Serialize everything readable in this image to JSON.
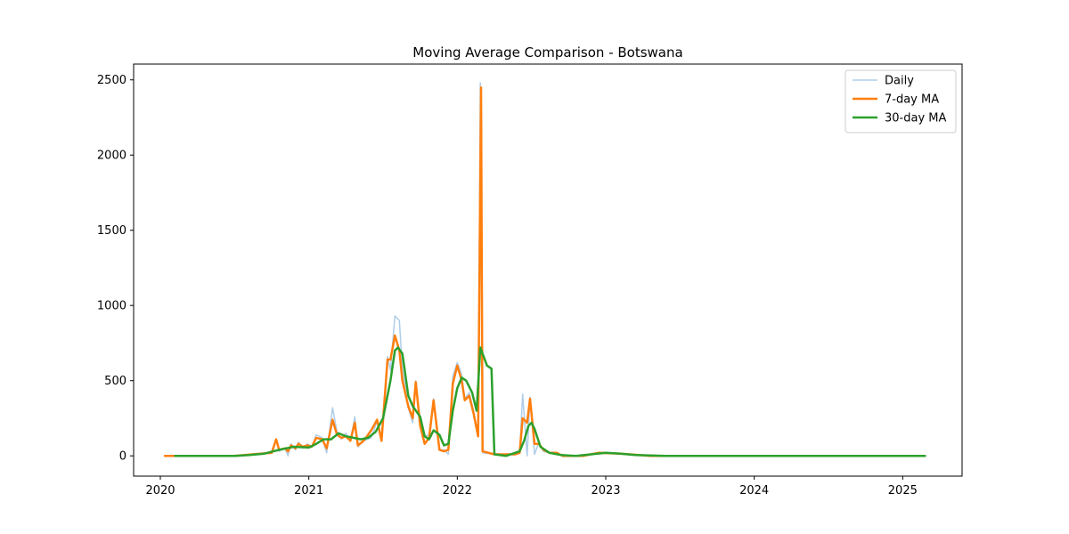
{
  "chart_data": {
    "type": "line",
    "title": "Moving Average Comparison - Botswana",
    "xlabel": "",
    "ylabel": "",
    "xlim": [
      2019.82,
      2025.4
    ],
    "ylim": [
      -135,
      2605
    ],
    "x_ticks": [
      2020,
      2021,
      2022,
      2023,
      2024,
      2025
    ],
    "x_tick_labels": [
      "2020",
      "2021",
      "2022",
      "2023",
      "2024",
      "2025"
    ],
    "y_ticks": [
      0,
      500,
      1000,
      1500,
      2000,
      2500
    ],
    "y_tick_labels": [
      "0",
      "500",
      "1000",
      "1500",
      "2000",
      "2500"
    ],
    "grid": false,
    "legend_position": "top-right",
    "series": [
      {
        "name": "Daily",
        "color": "#aecde8",
        "width": 1.5,
        "points": [
          [
            2020.03,
            0
          ],
          [
            2020.5,
            0
          ],
          [
            2020.62,
            10
          ],
          [
            2020.75,
            20
          ],
          [
            2020.78,
            110
          ],
          [
            2020.8,
            30
          ],
          [
            2020.84,
            50
          ],
          [
            2020.86,
            0
          ],
          [
            2020.88,
            80
          ],
          [
            2020.91,
            40
          ],
          [
            2020.93,
            90
          ],
          [
            2020.96,
            50
          ],
          [
            2020.99,
            80
          ],
          [
            2021.02,
            60
          ],
          [
            2021.05,
            140
          ],
          [
            2021.09,
            120
          ],
          [
            2021.12,
            20
          ],
          [
            2021.16,
            320
          ],
          [
            2021.19,
            160
          ],
          [
            2021.22,
            110
          ],
          [
            2021.25,
            150
          ],
          [
            2021.28,
            100
          ],
          [
            2021.31,
            260
          ],
          [
            2021.33,
            60
          ],
          [
            2021.37,
            100
          ],
          [
            2021.42,
            120
          ],
          [
            2021.46,
            230
          ],
          [
            2021.49,
            110
          ],
          [
            2021.53,
            660
          ],
          [
            2021.55,
            570
          ],
          [
            2021.58,
            930
          ],
          [
            2021.61,
            900
          ],
          [
            2021.63,
            580
          ],
          [
            2021.67,
            320
          ],
          [
            2021.7,
            220
          ],
          [
            2021.72,
            500
          ],
          [
            2021.75,
            230
          ],
          [
            2021.78,
            130
          ],
          [
            2021.81,
            140
          ],
          [
            2021.84,
            380
          ],
          [
            2021.88,
            40
          ],
          [
            2021.91,
            40
          ],
          [
            2021.94,
            10
          ],
          [
            2021.97,
            530
          ],
          [
            2022.0,
            620
          ],
          [
            2022.03,
            540
          ],
          [
            2022.05,
            380
          ],
          [
            2022.08,
            420
          ],
          [
            2022.11,
            300
          ],
          [
            2022.14,
            130
          ],
          [
            2022.155,
            2480
          ],
          [
            2022.17,
            20
          ],
          [
            2022.25,
            10
          ],
          [
            2022.33,
            10
          ],
          [
            2022.39,
            10
          ],
          [
            2022.42,
            20
          ],
          [
            2022.44,
            410
          ],
          [
            2022.47,
            0
          ],
          [
            2022.49,
            390
          ],
          [
            2022.52,
            10
          ],
          [
            2022.55,
            90
          ],
          [
            2022.58,
            30
          ],
          [
            2022.62,
            20
          ],
          [
            2022.67,
            10
          ],
          [
            2022.71,
            0
          ],
          [
            2022.85,
            0
          ],
          [
            2022.95,
            20
          ],
          [
            2023.1,
            15
          ],
          [
            2023.3,
            0
          ],
          [
            2025.15,
            0
          ]
        ]
      },
      {
        "name": "7-day MA",
        "color": "#ff7f0e",
        "width": 2.5,
        "points": [
          [
            2020.03,
            0
          ],
          [
            2020.5,
            0
          ],
          [
            2020.62,
            10
          ],
          [
            2020.75,
            20
          ],
          [
            2020.78,
            110
          ],
          [
            2020.8,
            40
          ],
          [
            2020.84,
            50
          ],
          [
            2020.86,
            30
          ],
          [
            2020.88,
            70
          ],
          [
            2020.91,
            50
          ],
          [
            2020.93,
            80
          ],
          [
            2020.96,
            60
          ],
          [
            2020.99,
            70
          ],
          [
            2021.02,
            60
          ],
          [
            2021.05,
            120
          ],
          [
            2021.09,
            110
          ],
          [
            2021.12,
            50
          ],
          [
            2021.16,
            240
          ],
          [
            2021.19,
            140
          ],
          [
            2021.22,
            120
          ],
          [
            2021.25,
            130
          ],
          [
            2021.28,
            100
          ],
          [
            2021.31,
            220
          ],
          [
            2021.33,
            70
          ],
          [
            2021.37,
            100
          ],
          [
            2021.42,
            170
          ],
          [
            2021.46,
            240
          ],
          [
            2021.49,
            100
          ],
          [
            2021.53,
            640
          ],
          [
            2021.55,
            640
          ],
          [
            2021.58,
            800
          ],
          [
            2021.61,
            700
          ],
          [
            2021.63,
            500
          ],
          [
            2021.67,
            330
          ],
          [
            2021.7,
            250
          ],
          [
            2021.72,
            490
          ],
          [
            2021.75,
            200
          ],
          [
            2021.78,
            80
          ],
          [
            2021.81,
            120
          ],
          [
            2021.84,
            370
          ],
          [
            2021.88,
            40
          ],
          [
            2021.91,
            30
          ],
          [
            2021.94,
            40
          ],
          [
            2021.97,
            480
          ],
          [
            2022.0,
            600
          ],
          [
            2022.03,
            500
          ],
          [
            2022.05,
            370
          ],
          [
            2022.08,
            400
          ],
          [
            2022.11,
            280
          ],
          [
            2022.14,
            130
          ],
          [
            2022.16,
            2450
          ],
          [
            2022.17,
            30
          ],
          [
            2022.25,
            10
          ],
          [
            2022.33,
            10
          ],
          [
            2022.39,
            10
          ],
          [
            2022.42,
            20
          ],
          [
            2022.44,
            250
          ],
          [
            2022.47,
            220
          ],
          [
            2022.49,
            380
          ],
          [
            2022.52,
            80
          ],
          [
            2022.55,
            80
          ],
          [
            2022.58,
            40
          ],
          [
            2022.62,
            20
          ],
          [
            2022.67,
            20
          ],
          [
            2022.71,
            0
          ],
          [
            2022.85,
            0
          ],
          [
            2022.95,
            20
          ],
          [
            2023.1,
            15
          ],
          [
            2023.3,
            0
          ],
          [
            2025.15,
            0
          ]
        ]
      },
      {
        "name": "30-day MA",
        "color": "#2ca02c",
        "width": 2.5,
        "points": [
          [
            2020.1,
            0
          ],
          [
            2020.5,
            0
          ],
          [
            2020.6,
            5
          ],
          [
            2020.7,
            15
          ],
          [
            2020.8,
            40
          ],
          [
            2020.9,
            60
          ],
          [
            2021.0,
            55
          ],
          [
            2021.05,
            80
          ],
          [
            2021.1,
            110
          ],
          [
            2021.15,
            110
          ],
          [
            2021.2,
            150
          ],
          [
            2021.25,
            130
          ],
          [
            2021.3,
            120
          ],
          [
            2021.35,
            110
          ],
          [
            2021.4,
            120
          ],
          [
            2021.45,
            160
          ],
          [
            2021.5,
            250
          ],
          [
            2021.55,
            500
          ],
          [
            2021.58,
            700
          ],
          [
            2021.6,
            720
          ],
          [
            2021.63,
            680
          ],
          [
            2021.67,
            400
          ],
          [
            2021.7,
            330
          ],
          [
            2021.75,
            260
          ],
          [
            2021.78,
            130
          ],
          [
            2021.81,
            110
          ],
          [
            2021.84,
            170
          ],
          [
            2021.88,
            140
          ],
          [
            2021.91,
            70
          ],
          [
            2021.94,
            80
          ],
          [
            2021.97,
            300
          ],
          [
            2022.0,
            450
          ],
          [
            2022.03,
            520
          ],
          [
            2022.06,
            500
          ],
          [
            2022.1,
            420
          ],
          [
            2022.13,
            300
          ],
          [
            2022.155,
            720
          ],
          [
            2022.2,
            600
          ],
          [
            2022.23,
            580
          ],
          [
            2022.25,
            10
          ],
          [
            2022.33,
            0
          ],
          [
            2022.42,
            30
          ],
          [
            2022.45,
            100
          ],
          [
            2022.48,
            200
          ],
          [
            2022.5,
            220
          ],
          [
            2022.52,
            180
          ],
          [
            2022.56,
            60
          ],
          [
            2022.62,
            20
          ],
          [
            2022.7,
            5
          ],
          [
            2022.8,
            0
          ],
          [
            2022.9,
            10
          ],
          [
            2023.0,
            20
          ],
          [
            2023.1,
            15
          ],
          [
            2023.2,
            5
          ],
          [
            2023.4,
            0
          ],
          [
            2025.15,
            0
          ]
        ]
      }
    ]
  }
}
